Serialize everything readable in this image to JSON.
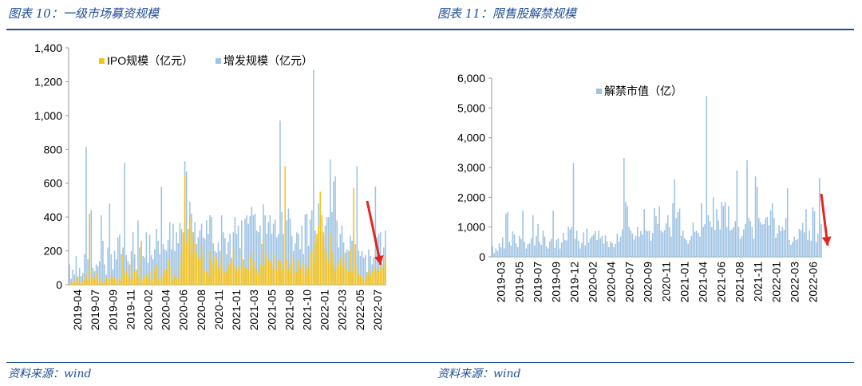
{
  "left": {
    "title": "图表 10：一级市场募资规模",
    "source": "资料来源：wind",
    "chart_data": {
      "type": "bar",
      "title": "",
      "stacked": false,
      "ylim": [
        0,
        1400
      ],
      "yticks": [
        0,
        200,
        400,
        600,
        800,
        1000,
        1200,
        1400
      ],
      "ytick_labels": [
        "0",
        "200",
        "400",
        "600",
        "800",
        "1,000",
        "1,200",
        "1,400"
      ],
      "xtick_labels": [
        "2019-04",
        "2019-07",
        "2019-09",
        "2019-11",
        "2020-02",
        "2020-04",
        "2020-06",
        "2020-08",
        "2020-11",
        "2021-01",
        "2021-03",
        "2021-05",
        "2021-08",
        "2021-10",
        "2022-01",
        "2022-03",
        "2022-05",
        "2022-07"
      ],
      "legend": "top-left",
      "series": [
        {
          "name": "IPO规模（亿元）",
          "color": "#f5c218",
          "values": [
            5,
            8,
            12,
            20,
            35,
            50,
            10,
            6,
            18,
            30,
            60,
            25,
            420,
            90,
            40,
            35,
            70,
            20,
            25,
            45,
            8,
            18,
            40,
            35,
            30,
            60,
            45,
            40,
            15,
            35,
            25,
            20,
            180,
            60,
            85,
            50,
            35,
            140,
            30,
            80,
            90,
            45,
            15,
            250,
            30,
            45,
            60,
            35,
            80,
            20,
            35,
            90,
            120,
            30,
            15,
            60,
            45,
            90,
            85,
            150,
            115,
            25,
            30,
            60,
            40,
            35,
            120,
            190,
            310,
            650,
            250,
            330,
            400,
            180,
            310,
            250,
            190,
            160,
            150,
            240,
            180,
            85,
            75,
            60,
            195,
            140,
            115,
            170,
            150,
            95,
            120,
            180,
            85,
            70,
            80,
            115,
            125,
            150,
            205,
            110,
            85,
            110,
            90,
            175,
            135,
            100,
            100,
            85,
            165,
            200,
            110,
            135,
            85,
            65,
            120,
            110,
            265,
            120,
            185,
            150,
            135,
            120,
            95,
            180,
            90,
            150,
            135,
            90,
            120,
            700,
            150,
            85,
            120,
            180,
            135,
            60,
            75,
            150,
            95,
            115,
            140,
            65,
            110,
            95,
            185,
            210,
            135,
            250,
            300,
            350,
            550,
            410,
            310,
            220,
            185,
            135,
            300,
            190,
            115,
            80,
            95,
            125,
            155,
            110,
            185,
            140,
            95,
            80,
            210,
            80,
            570,
            240,
            110,
            60,
            60,
            40,
            20,
            35,
            60,
            85,
            55,
            80,
            115,
            85,
            95,
            80,
            110,
            95,
            120,
            170
          ]
        },
        {
          "name": "增发规模（亿元）",
          "color": "#9ec3e3",
          "values": [
            120,
            35,
            90,
            60,
            170,
            45,
            100,
            50,
            70,
            180,
            815,
            150,
            360,
            440,
            100,
            80,
            120,
            110,
            140,
            410,
            260,
            120,
            60,
            220,
            480,
            180,
            90,
            200,
            150,
            280,
            295,
            180,
            220,
            720,
            175,
            140,
            120,
            200,
            310,
            180,
            85,
            380,
            220,
            260,
            170,
            160,
            310,
            130,
            295,
            175,
            150,
            210,
            330,
            260,
            180,
            580,
            240,
            210,
            200,
            265,
            370,
            210,
            360,
            200,
            310,
            245,
            365,
            330,
            300,
            730,
            670,
            300,
            490,
            420,
            310,
            370,
            240,
            280,
            320,
            360,
            280,
            270,
            380,
            300,
            410,
            400,
            245,
            200,
            190,
            250,
            200,
            410,
            310,
            275,
            180,
            255,
            300,
            160,
            310,
            400,
            300,
            350,
            215,
            380,
            150,
            390,
            410,
            360,
            405,
            460,
            410,
            420,
            320,
            310,
            350,
            240,
            475,
            410,
            300,
            370,
            410,
            300,
            360,
            385,
            280,
            300,
            970,
            430,
            300,
            250,
            380,
            450,
            390,
            290,
            200,
            245,
            310,
            300,
            210,
            350,
            180,
            415,
            420,
            230,
            385,
            440,
            1270,
            320,
            270,
            480,
            320,
            270,
            290,
            350,
            400,
            400,
            740,
            430,
            610,
            640,
            380,
            220,
            300,
            350,
            250,
            190,
            210,
            200,
            290,
            260,
            320,
            190,
            700,
            200,
            170,
            200,
            160,
            175,
            75,
            210,
            170,
            120,
            160,
            580,
            280,
            300,
            310,
            120,
            220,
            320
          ]
        }
      ]
    }
  },
  "right": {
    "title": "图表 11：限售股解禁规模",
    "source": "资料来源：wind",
    "chart_data": {
      "type": "bar",
      "title": "",
      "ylim": [
        0,
        6000
      ],
      "yticks": [
        0,
        1000,
        2000,
        3000,
        4000,
        5000,
        6000
      ],
      "ytick_labels": [
        "0",
        "1,000",
        "2,000",
        "3,000",
        "4,000",
        "5,000",
        "6,000"
      ],
      "xtick_labels": [
        "2019-03",
        "2019-05",
        "2019-07",
        "2019-09",
        "2019-12",
        "2020-02",
        "2020-04",
        "2020-07",
        "2020-09",
        "2020-11",
        "2021-01",
        "2021-04",
        "2021-06",
        "2021-08",
        "2021-11",
        "2022-01",
        "2022-03",
        "2022-06"
      ],
      "legend": "top-left",
      "series": [
        {
          "name": "解禁市值（亿）",
          "color": "#9ec3e3",
          "values": [
            350,
            120,
            280,
            200,
            450,
            320,
            650,
            280,
            1450,
            1500,
            500,
            380,
            850,
            750,
            450,
            320,
            700,
            600,
            1550,
            500,
            280,
            420,
            450,
            620,
            1400,
            380,
            700,
            1100,
            500,
            400,
            880,
            680,
            350,
            280,
            520,
            600,
            1550,
            300,
            560,
            620,
            280,
            480,
            800,
            560,
            550,
            1000,
            920,
            1000,
            3150,
            600,
            880,
            540,
            280,
            460,
            820,
            380,
            950,
            480,
            620,
            700,
            760,
            860,
            560,
            880,
            620,
            700,
            440,
            720,
            520,
            320,
            520,
            460,
            320,
            440,
            780,
            520,
            680,
            920,
            3320,
            1840,
            1700,
            1000,
            880,
            780,
            580,
            700,
            1000,
            680,
            860,
            750,
            1600,
            900,
            850,
            880,
            540,
            800,
            1640,
            1360,
            1100,
            1700,
            880,
            820,
            900,
            1120,
            1400,
            1000,
            680,
            1800,
            2600,
            1300,
            1500,
            1620,
            700,
            880,
            620,
            560,
            440,
            560,
            700,
            1160,
            840,
            880,
            800,
            680,
            1800,
            1000,
            1100,
            5400,
            1400,
            1200,
            1000,
            2000,
            900,
            1600,
            1220,
            920,
            1840,
            1700,
            1840,
            1000,
            1700,
            880,
            920,
            1000,
            1200,
            2900,
            1000,
            600,
            700,
            920,
            1100,
            3250,
            1300,
            1200,
            1000,
            600,
            2700,
            2340,
            1300,
            1160,
            1080,
            1100,
            1300,
            1340,
            1060,
            1560,
            1800,
            1300,
            640,
            780,
            1060,
            860,
            1000,
            900,
            1300,
            2300,
            560,
            400,
            500,
            680,
            560,
            600,
            940,
            880,
            1140,
            820,
            1600,
            560,
            880,
            540,
            1660,
            1520,
            500,
            780,
            2640,
            1100
          ]
        }
      ]
    }
  }
}
